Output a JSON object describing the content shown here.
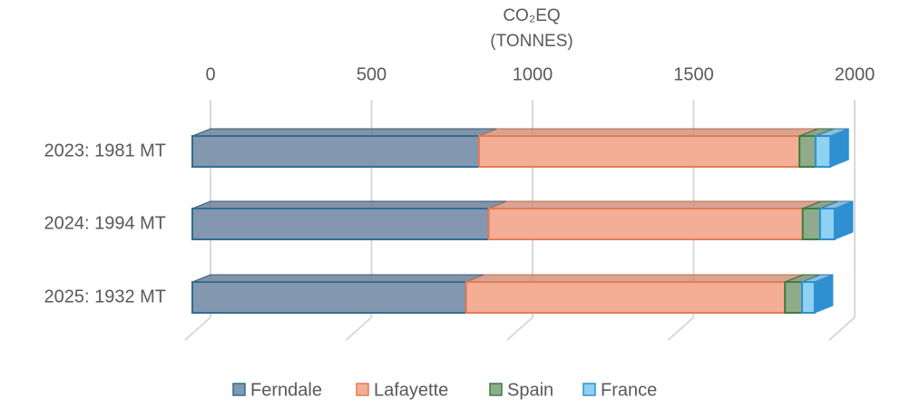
{
  "chart_data": {
    "type": "bar3d_stacked_horizontal",
    "title": [
      "CO₂EQ",
      "(TONNES)"
    ],
    "categories": [
      "2023: 1981 MT",
      "2024: 1994 MT",
      "2025: 1932 MT"
    ],
    "series": [
      {
        "name": "Ferndale",
        "color": "#8497b0",
        "edge": "#2f6f91",
        "values": [
          890,
          920,
          850
        ]
      },
      {
        "name": "Lafayette",
        "color": "#f4ae96",
        "edge": "#e47c56",
        "values": [
          995,
          975,
          990
        ]
      },
      {
        "name": "Spain",
        "color": "#8fab8c",
        "edge": "#3d7f3d",
        "values": [
          50,
          54,
          53
        ]
      },
      {
        "name": "France",
        "color": "#8fd1f2",
        "edge": "#2e90d0",
        "values": [
          46,
          45,
          39
        ]
      }
    ],
    "xlim": [
      0,
      2000
    ],
    "xticks": [
      0,
      500,
      1000,
      1500,
      2000
    ],
    "grid": true,
    "legend": "bottom"
  }
}
